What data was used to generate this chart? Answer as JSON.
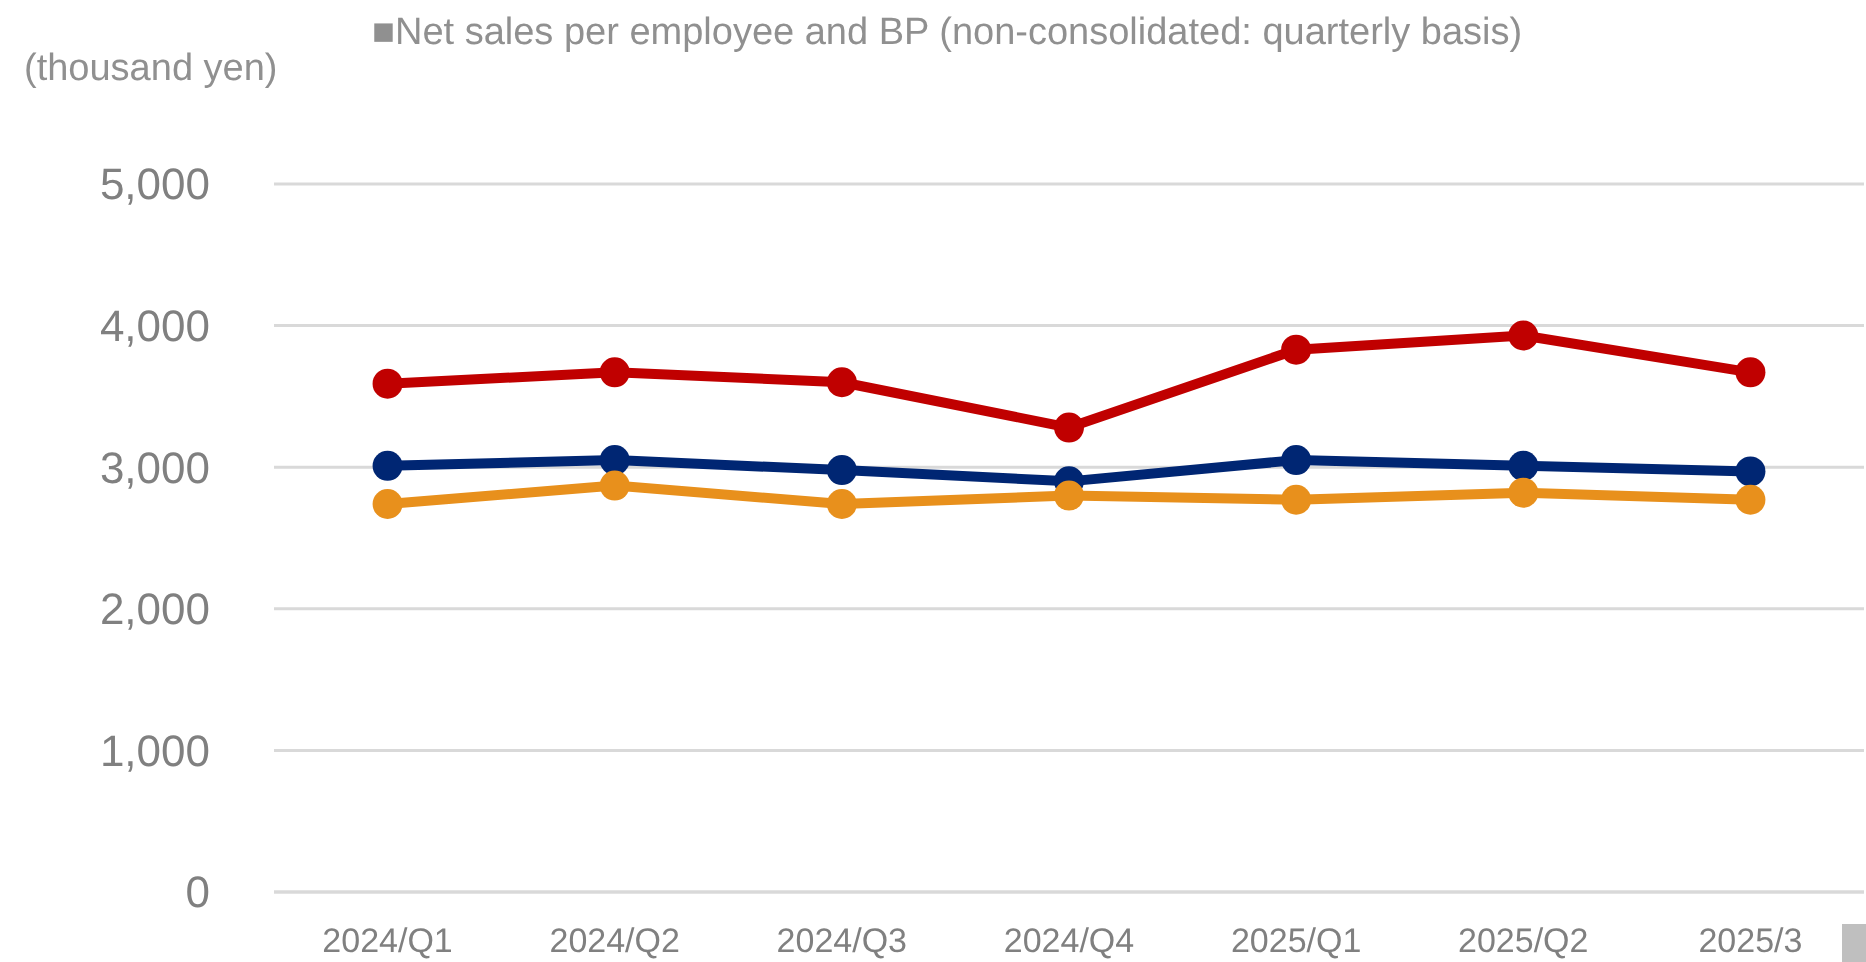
{
  "chart_data": {
    "type": "line",
    "title": "■Net sales per employee and BP (non-consolidated: quarterly basis)",
    "ylabel": "(thousand yen)",
    "categories": [
      "2024/Q1",
      "2024/Q2",
      "2024/Q3",
      "2024/Q4",
      "2025/Q1",
      "2025/Q2",
      "2025/3"
    ],
    "series": [
      {
        "color": "#c00000",
        "values": [
          3590,
          3670,
          3600,
          3280,
          3830,
          3930,
          3670
        ]
      },
      {
        "color": "#002673",
        "values": [
          3010,
          3050,
          2980,
          2900,
          3050,
          3010,
          2970
        ]
      },
      {
        "color": "#e8901c",
        "values": [
          2740,
          2870,
          2740,
          2800,
          2770,
          2820,
          2770
        ]
      }
    ],
    "ylim": [
      0,
      5000
    ],
    "yticks": [
      {
        "value": 0,
        "label": "0"
      },
      {
        "value": 1000,
        "label": "1,000"
      },
      {
        "value": 2000,
        "label": "2,000"
      },
      {
        "value": 3000,
        "label": "3,000"
      },
      {
        "value": 4000,
        "label": "4,000"
      },
      {
        "value": 5000,
        "label": "5,000"
      }
    ],
    "grid": "y",
    "marker": "circle",
    "line_style": "solid"
  }
}
